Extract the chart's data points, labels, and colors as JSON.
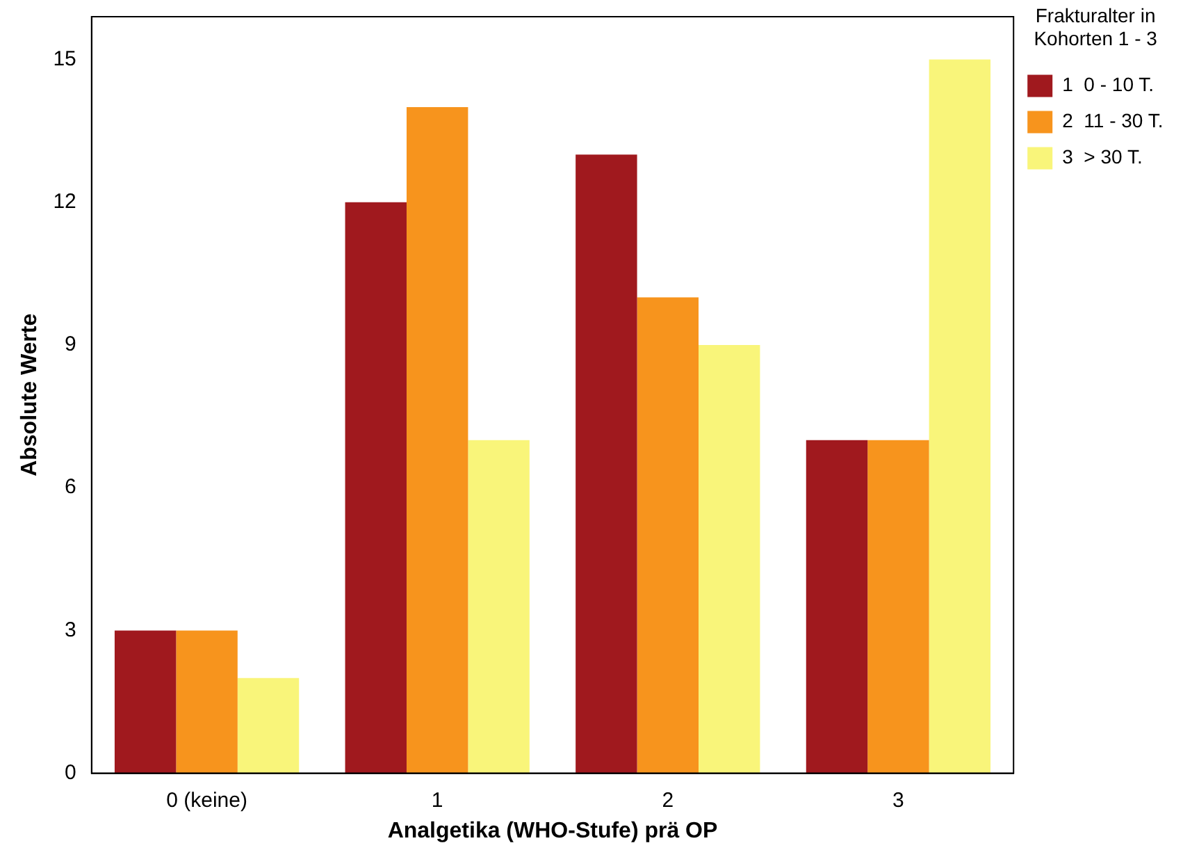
{
  "chart_data": {
    "type": "bar",
    "xlabel": "Analgetika (WHO-Stufe) prä OP",
    "ylabel": "Absolute Werte",
    "legend_title": "Frakturalter in Kohorten 1 - 3",
    "categories": [
      "0 (keine)",
      "1",
      "2",
      "3"
    ],
    "series": [
      {
        "name": "1  0 - 10 T.",
        "color": "#a0191e",
        "values": [
          3,
          12,
          13,
          7
        ]
      },
      {
        "name": "2  11 - 30 T.",
        "color": "#f7941d",
        "values": [
          3,
          14,
          10,
          7
        ]
      },
      {
        "name": "3  > 30 T.",
        "color": "#f9f57a",
        "values": [
          2,
          7,
          9,
          15
        ]
      }
    ],
    "ylim": [
      0,
      15.9
    ],
    "yticks": [
      0,
      3,
      6,
      9,
      12,
      15
    ],
    "grid": false,
    "legend": "right"
  }
}
